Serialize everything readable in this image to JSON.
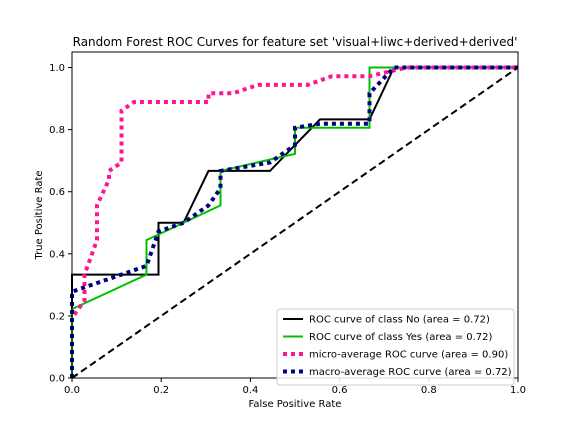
{
  "chart_data": {
    "type": "line",
    "title": "Random Forest ROC Curves for feature set 'visual+liwc+derived+derived'",
    "xlabel": "False Positive Rate",
    "ylabel": "True Positive Rate",
    "xlim": [
      0.0,
      1.0
    ],
    "ylim": [
      0.0,
      1.05
    ],
    "xticks": [
      "0.0",
      "0.2",
      "0.4",
      "0.6",
      "0.8",
      "1.0"
    ],
    "yticks": [
      "0.0",
      "0.2",
      "0.4",
      "0.6",
      "0.8",
      "1.0"
    ],
    "legend_position": "lower-right",
    "grid": false,
    "series": [
      {
        "name": "ROC curve of class No (area = 0.72)",
        "color": "#000000",
        "style": "solid",
        "x": [
          0.0,
          0.0,
          0.194,
          0.194,
          0.25,
          0.25,
          0.306,
          0.333,
          0.444,
          0.5,
          0.5,
          0.556,
          0.667,
          0.722,
          0.778,
          1.0
        ],
        "y": [
          0.0,
          0.333,
          0.333,
          0.5,
          0.5,
          0.5,
          0.667,
          0.667,
          0.667,
          0.75,
          0.75,
          0.833,
          0.833,
          1.0,
          1.0,
          1.0
        ]
      },
      {
        "name": "ROC curve of class Yes (area = 0.72)",
        "color": "#00c000",
        "style": "solid",
        "x": [
          0.0,
          0.0,
          0.167,
          0.167,
          0.333,
          0.333,
          0.5,
          0.5,
          0.667,
          0.667,
          1.0
        ],
        "y": [
          0.0,
          0.222,
          0.333,
          0.444,
          0.556,
          0.667,
          0.722,
          0.806,
          0.806,
          1.0,
          1.0
        ]
      },
      {
        "name": "micro-average ROC curve (area = 0.90)",
        "color": "#ff1493",
        "style": "dotted",
        "x": [
          0.0,
          0.0,
          0.028,
          0.028,
          0.056,
          0.056,
          0.083,
          0.083,
          0.111,
          0.111,
          0.139,
          0.139,
          0.306,
          0.306,
          0.333,
          0.361,
          0.417,
          0.528,
          0.583,
          0.611,
          0.667,
          0.75,
          0.778,
          1.0
        ],
        "y": [
          0.0,
          0.194,
          0.25,
          0.333,
          0.444,
          0.556,
          0.639,
          0.667,
          0.694,
          0.861,
          0.889,
          0.889,
          0.889,
          0.917,
          0.917,
          0.917,
          0.944,
          0.944,
          0.972,
          0.972,
          0.972,
          1.0,
          1.0,
          1.0
        ]
      },
      {
        "name": "macro-average ROC curve (area = 0.72)",
        "color": "#000080",
        "style": "dotted",
        "x": [
          0.0,
          0.0,
          0.167,
          0.194,
          0.25,
          0.306,
          0.333,
          0.333,
          0.444,
          0.5,
          0.5,
          0.556,
          0.667,
          0.667,
          0.722,
          0.778,
          1.0
        ],
        "y": [
          0.0,
          0.278,
          0.361,
          0.472,
          0.5,
          0.556,
          0.611,
          0.667,
          0.694,
          0.75,
          0.806,
          0.819,
          0.819,
          0.917,
          1.0,
          1.0,
          1.0
        ]
      },
      {
        "name": "",
        "color": "#000000",
        "style": "dashed",
        "x": [
          0.0,
          1.0
        ],
        "y": [
          0.0,
          1.0
        ]
      }
    ]
  }
}
